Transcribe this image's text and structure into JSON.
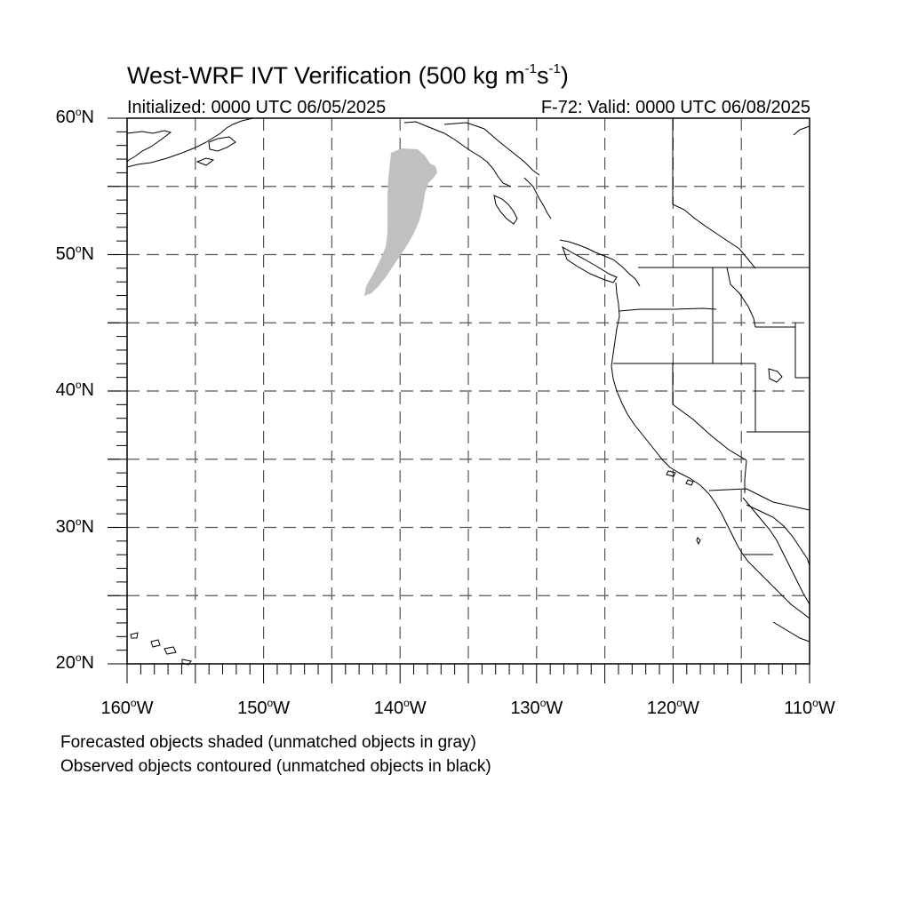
{
  "header": {
    "title_main": "West-WRF IVT Verification (500 kg m",
    "title_sup1": "-1",
    "title_mid": "s",
    "title_sup2": "-1",
    "title_end": ")",
    "initialized": "Initialized: 0000 UTC 06/05/2025",
    "valid": "F-72: Valid: 0000 UTC 06/08/2025"
  },
  "axes": {
    "lat_labels": [
      {
        "value": "60",
        "hemi": "N"
      },
      {
        "value": "50",
        "hemi": "N"
      },
      {
        "value": "40",
        "hemi": "N"
      },
      {
        "value": "30",
        "hemi": "N"
      },
      {
        "value": "20",
        "hemi": "N"
      }
    ],
    "lon_labels": [
      {
        "value": "160",
        "hemi": "W"
      },
      {
        "value": "150",
        "hemi": "W"
      },
      {
        "value": "140",
        "hemi": "W"
      },
      {
        "value": "130",
        "hemi": "W"
      },
      {
        "value": "120",
        "hemi": "W"
      },
      {
        "value": "110",
        "hemi": "W"
      }
    ],
    "lat_range": [
      20,
      60
    ],
    "lon_range": [
      -160,
      -110
    ],
    "grid": "dashed every 5 degrees"
  },
  "legend": {
    "line1": "Forecasted objects shaded (unmatched objects in gray)",
    "line2": "Observed objects contoured (unmatched objects in black)"
  },
  "colors": {
    "forecast_unmatched": "#c0c0c0",
    "coastline": "#000000",
    "grid": "#555555"
  }
}
